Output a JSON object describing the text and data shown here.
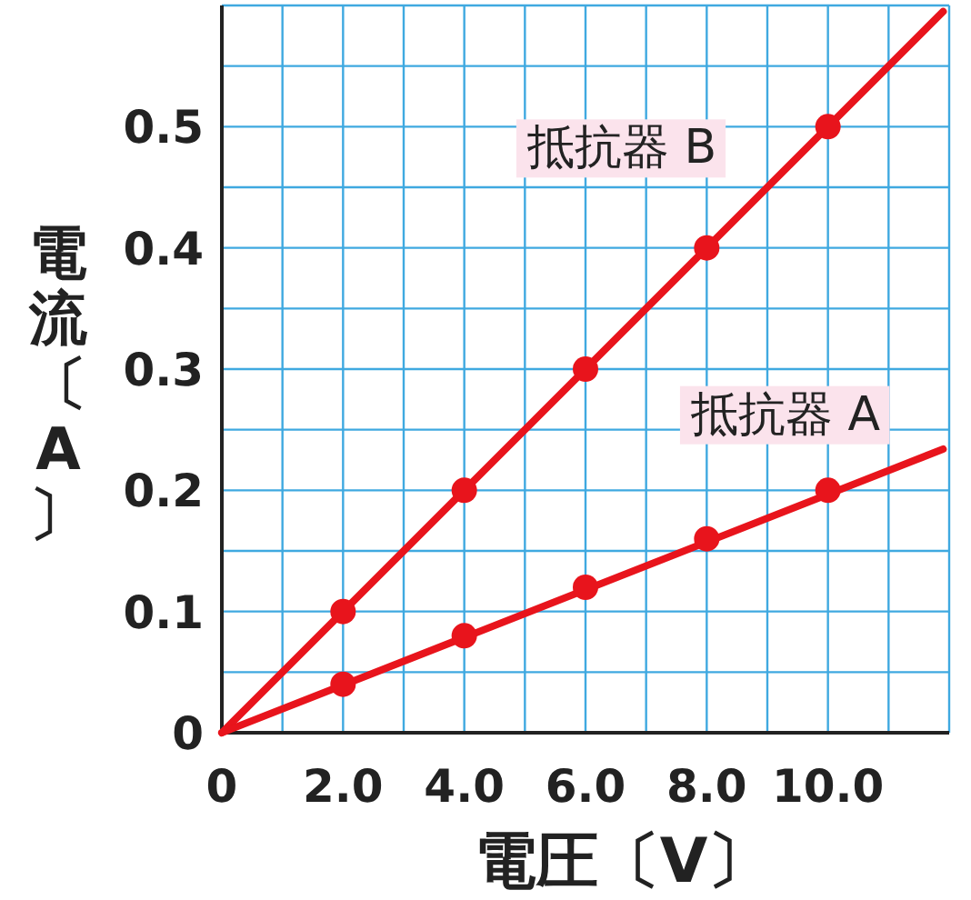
{
  "chart_data": {
    "type": "line",
    "xlabel": "電圧〔V〕",
    "ylabel": "電流〔A〕",
    "xlim": [
      0,
      12
    ],
    "ylim": [
      0,
      0.6
    ],
    "xticks": [
      {
        "value": 0,
        "label": "0"
      },
      {
        "value": 1,
        "label": null
      },
      {
        "value": 2,
        "label": "2.0"
      },
      {
        "value": 3,
        "label": null
      },
      {
        "value": 4,
        "label": "4.0"
      },
      {
        "value": 5,
        "label": null
      },
      {
        "value": 6,
        "label": "6.0"
      },
      {
        "value": 7,
        "label": null
      },
      {
        "value": 8,
        "label": "8.0"
      },
      {
        "value": 9,
        "label": null
      },
      {
        "value": 10,
        "label": "10.0"
      },
      {
        "value": 11,
        "label": null
      },
      {
        "value": 12,
        "label": null
      }
    ],
    "yticks": [
      {
        "value": 0,
        "label": "0"
      },
      {
        "value": 0.05,
        "label": null
      },
      {
        "value": 0.1,
        "label": "0.1"
      },
      {
        "value": 0.15,
        "label": null
      },
      {
        "value": 0.2,
        "label": "0.2"
      },
      {
        "value": 0.25,
        "label": null
      },
      {
        "value": 0.3,
        "label": "0.3"
      },
      {
        "value": 0.35,
        "label": null
      },
      {
        "value": 0.4,
        "label": "0.4"
      },
      {
        "value": 0.45,
        "label": null
      },
      {
        "value": 0.5,
        "label": "0.5"
      },
      {
        "value": 0.55,
        "label": null
      },
      {
        "value": 0.6,
        "label": null
      }
    ],
    "grid": true,
    "line_style": "solid",
    "series": [
      {
        "name": "抵抗器 B",
        "type": "line",
        "marker": "none",
        "color": "#e8141c",
        "x": [
          0,
          11.9
        ],
        "values": [
          0,
          0.595
        ]
      },
      {
        "name": "抵抗器 A",
        "type": "line",
        "marker": "none",
        "color": "#e8141c",
        "x": [
          0,
          11.9
        ],
        "values": [
          0,
          0.234
        ]
      },
      {
        "type": "scatter",
        "marker": "circle",
        "color": "#e8141c",
        "x": [
          2,
          4,
          6,
          8,
          10
        ],
        "values": [
          0.1,
          0.2,
          0.3,
          0.4,
          0.5
        ]
      },
      {
        "type": "scatter",
        "marker": "circle",
        "color": "#e8141c",
        "x": [
          2,
          4,
          6,
          8,
          10
        ],
        "values": [
          0.04,
          0.08,
          0.12,
          0.16,
          0.2
        ]
      }
    ]
  }
}
